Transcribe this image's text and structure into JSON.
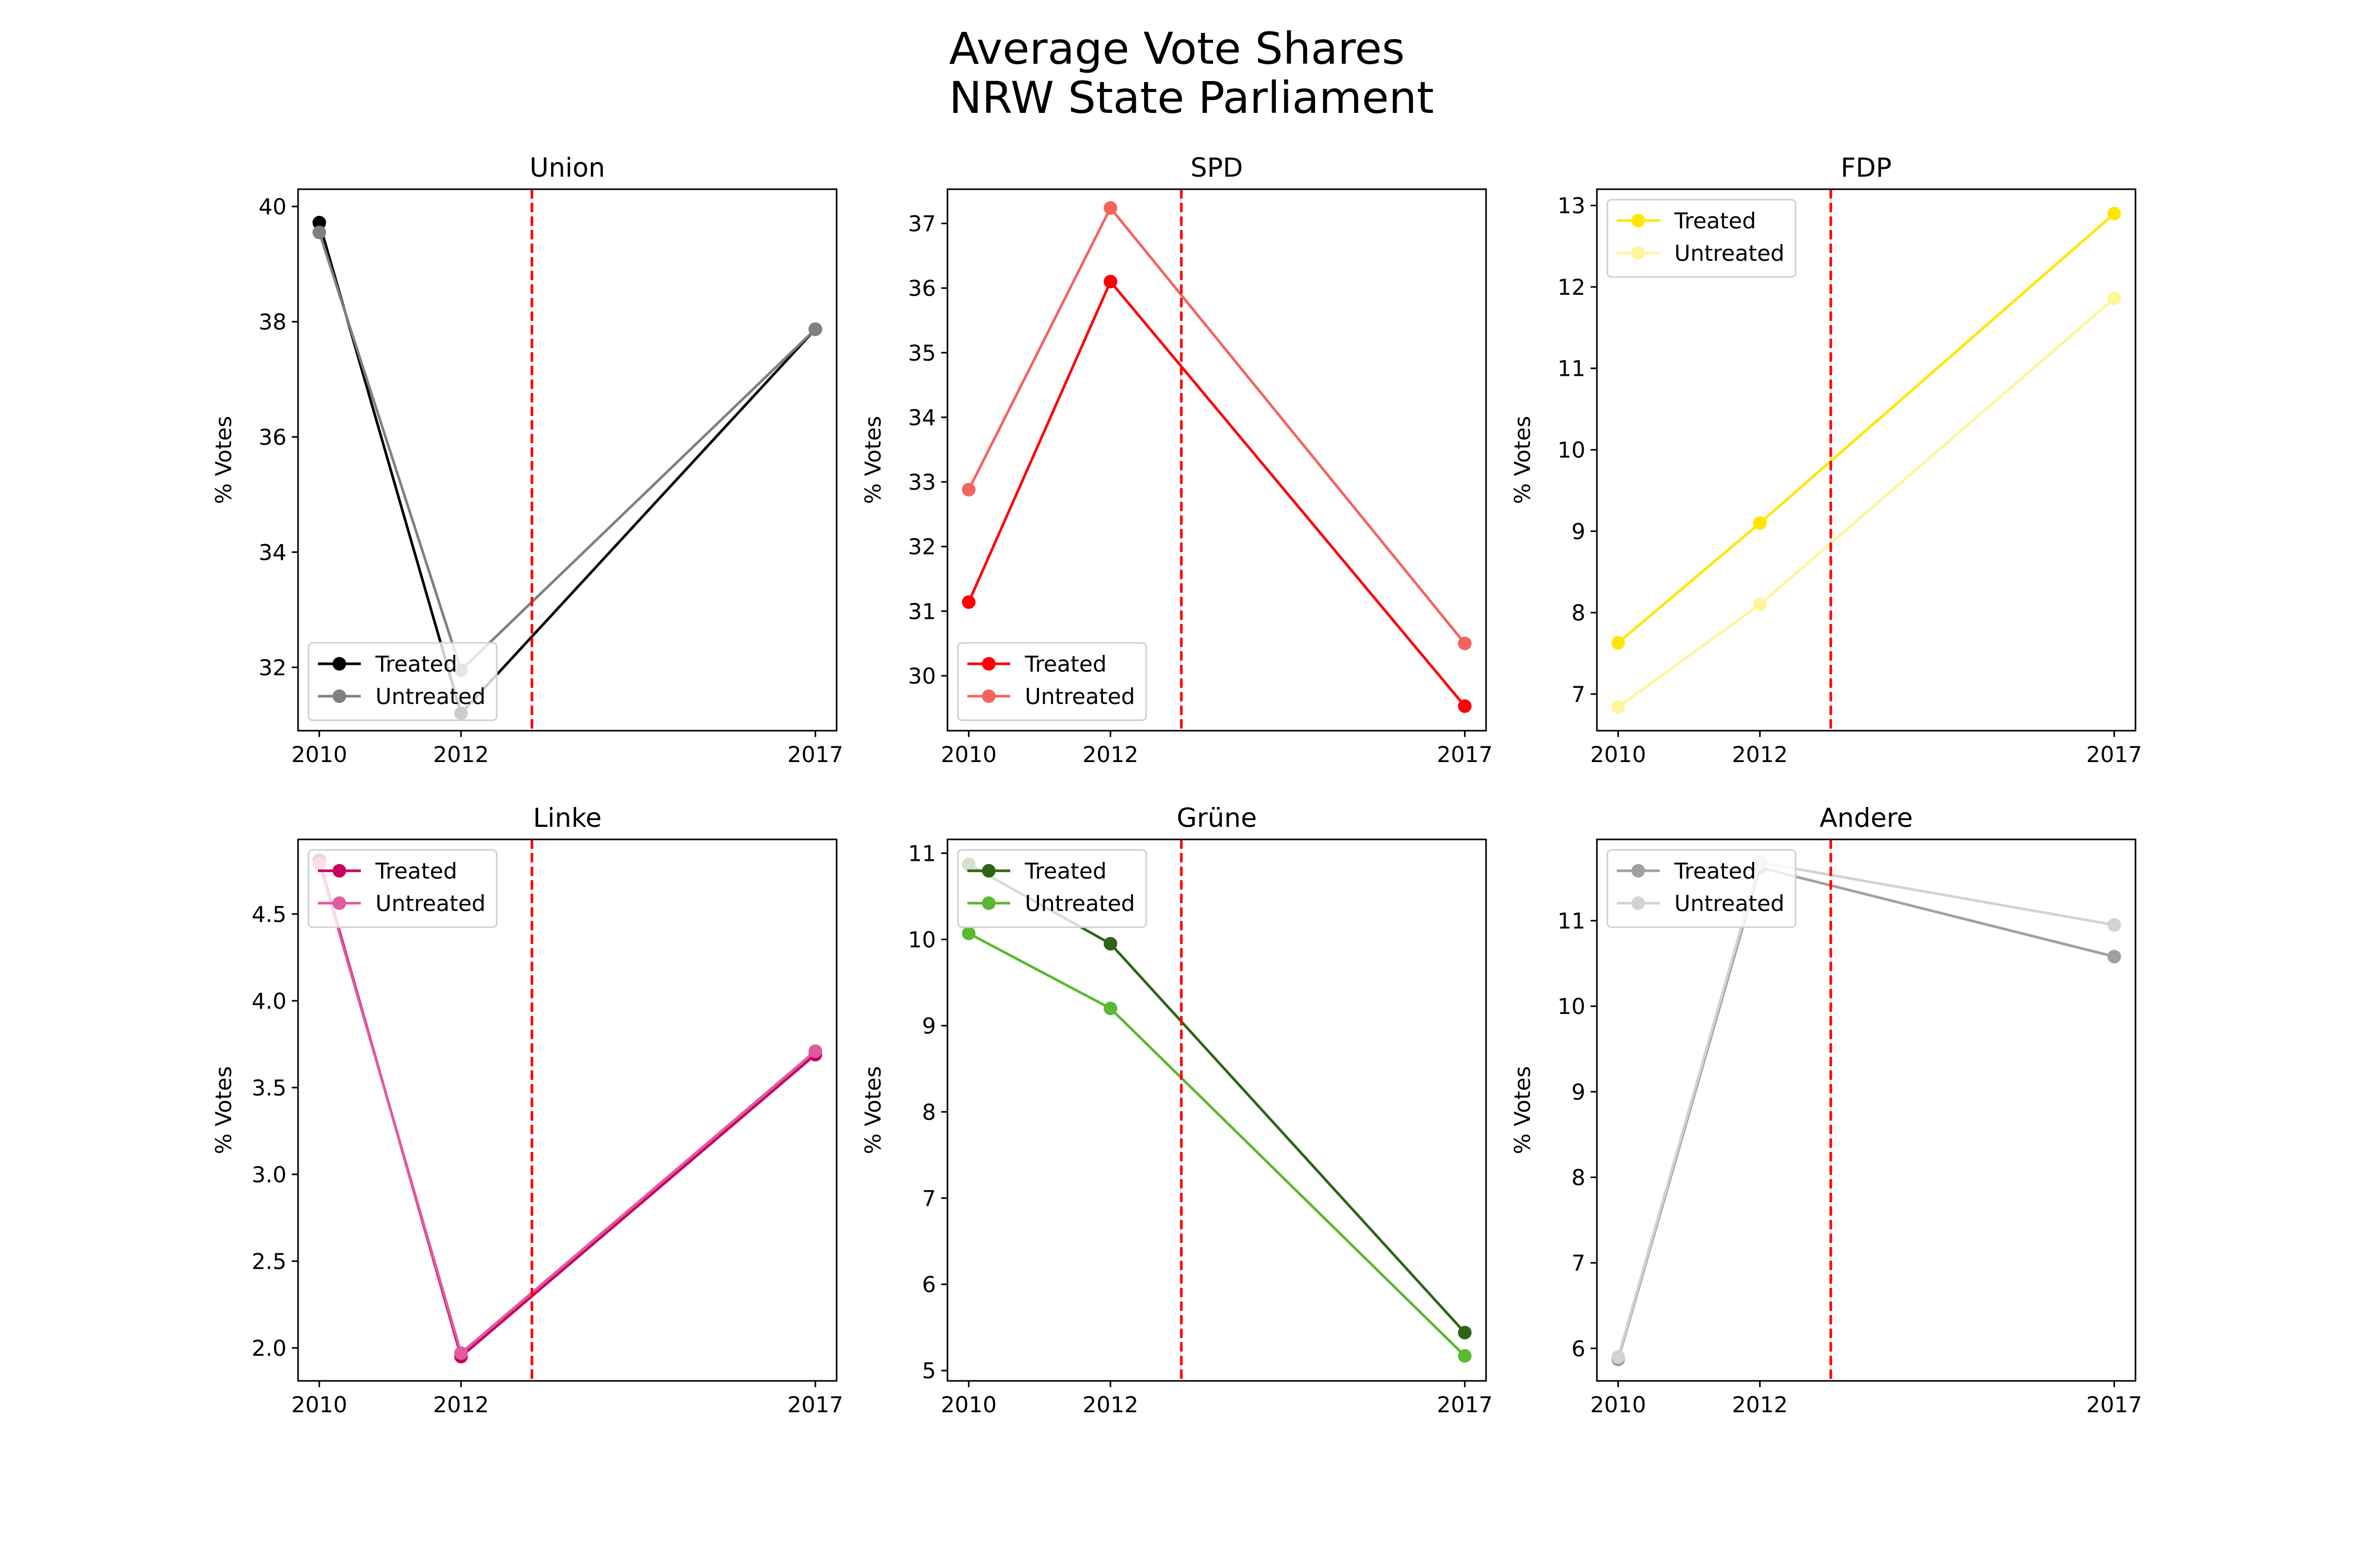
{
  "figure_title": [
    "Average Vote Shares",
    "NRW State Parliament"
  ],
  "chart_data": [
    {
      "type": "line",
      "title": "Union",
      "xlabel": "",
      "ylabel": "% Votes",
      "x": [
        2010,
        2012,
        2017
      ],
      "xticks": [
        "2010",
        "2012",
        "2017"
      ],
      "xlim": [
        2009.7,
        2017.3
      ],
      "ylim": [
        30.9,
        40.3
      ],
      "yticks": [
        32,
        34,
        36,
        38,
        40
      ],
      "yticklabels": [
        "32",
        "34",
        "36",
        "38",
        "40"
      ],
      "treatment_line_x": 2013,
      "legend_position": "lower-left",
      "grid": false,
      "series": [
        {
          "name": "Treated",
          "color": "#000000",
          "values": [
            39.72,
            31.2,
            37.87
          ]
        },
        {
          "name": "Untreated",
          "color": "#808080",
          "values": [
            39.55,
            31.95,
            37.87
          ]
        }
      ]
    },
    {
      "type": "line",
      "title": "SPD",
      "xlabel": "",
      "ylabel": "% Votes",
      "x": [
        2010,
        2012,
        2017
      ],
      "xticks": [
        "2010",
        "2012",
        "2017"
      ],
      "xlim": [
        2009.7,
        2017.3
      ],
      "ylim": [
        29.15,
        37.53
      ],
      "yticks": [
        30,
        31,
        32,
        33,
        34,
        35,
        36,
        37
      ],
      "yticklabels": [
        "30",
        "31",
        "32",
        "33",
        "34",
        "35",
        "36",
        "37"
      ],
      "treatment_line_x": 2013,
      "legend_position": "lower-left",
      "grid": false,
      "series": [
        {
          "name": "Treated",
          "color": "#ff0000",
          "values": [
            31.14,
            36.1,
            29.53
          ]
        },
        {
          "name": "Untreated",
          "color": "#f4645f",
          "values": [
            32.88,
            37.24,
            30.5
          ]
        }
      ]
    },
    {
      "type": "line",
      "title": "FDP",
      "xlabel": "",
      "ylabel": "% Votes",
      "x": [
        2010,
        2012,
        2017
      ],
      "xticks": [
        "2010",
        "2012",
        "2017"
      ],
      "xlim": [
        2009.7,
        2017.3
      ],
      "ylim": [
        6.55,
        13.2
      ],
      "yticks": [
        7,
        8,
        9,
        10,
        11,
        12,
        13
      ],
      "yticklabels": [
        "7",
        "8",
        "9",
        "10",
        "11",
        "12",
        "13"
      ],
      "treatment_line_x": 2013,
      "legend_position": "upper-left",
      "grid": false,
      "series": [
        {
          "name": "Treated",
          "color": "#ffe600",
          "values": [
            7.63,
            9.1,
            12.9
          ]
        },
        {
          "name": "Untreated",
          "color": "#fff59a",
          "values": [
            6.84,
            8.1,
            11.86
          ]
        }
      ]
    },
    {
      "type": "line",
      "title": "Linke",
      "xlabel": "",
      "ylabel": "% Votes",
      "x": [
        2010,
        2012,
        2017
      ],
      "xticks": [
        "2010",
        "2012",
        "2017"
      ],
      "xlim": [
        2009.7,
        2017.3
      ],
      "ylim": [
        1.81,
        4.93
      ],
      "yticks": [
        2.0,
        2.5,
        3.0,
        3.5,
        4.0,
        4.5
      ],
      "yticklabels": [
        "2.0",
        "2.5",
        "3.0",
        "3.5",
        "4.0",
        "4.5"
      ],
      "treatment_line_x": 2013,
      "legend_position": "upper-left",
      "grid": false,
      "series": [
        {
          "name": "Treated",
          "color": "#c8005f",
          "values": [
            4.81,
            1.95,
            3.69
          ]
        },
        {
          "name": "Untreated",
          "color": "#e05aa0",
          "values": [
            4.79,
            1.97,
            3.71
          ]
        }
      ]
    },
    {
      "type": "line",
      "title": "Grüne",
      "xlabel": "",
      "ylabel": "% Votes",
      "x": [
        2010,
        2012,
        2017
      ],
      "xticks": [
        "2010",
        "2012",
        "2017"
      ],
      "xlim": [
        2009.7,
        2017.3
      ],
      "ylim": [
        4.88,
        11.16
      ],
      "yticks": [
        5,
        6,
        7,
        8,
        9,
        10,
        11
      ],
      "yticklabels": [
        "5",
        "6",
        "7",
        "8",
        "9",
        "10",
        "11"
      ],
      "treatment_line_x": 2013,
      "legend_position": "upper-left",
      "grid": false,
      "series": [
        {
          "name": "Treated",
          "color": "#2e6318",
          "values": [
            10.87,
            9.95,
            5.44
          ]
        },
        {
          "name": "Untreated",
          "color": "#5ab832",
          "values": [
            10.07,
            9.2,
            5.17
          ]
        }
      ]
    },
    {
      "type": "line",
      "title": "Andere",
      "xlabel": "",
      "ylabel": "% Votes",
      "x": [
        2010,
        2012,
        2017
      ],
      "xticks": [
        "2010",
        "2012",
        "2017"
      ],
      "xlim": [
        2009.7,
        2017.3
      ],
      "ylim": [
        5.62,
        11.95
      ],
      "yticks": [
        6,
        7,
        8,
        9,
        10,
        11
      ],
      "yticklabels": [
        "6",
        "7",
        "8",
        "9",
        "10",
        "11"
      ],
      "treatment_line_x": 2013,
      "legend_position": "upper-left",
      "grid": false,
      "series": [
        {
          "name": "Treated",
          "color": "#a0a0a0",
          "values": [
            5.87,
            11.62,
            10.58
          ]
        },
        {
          "name": "Untreated",
          "color": "#d2d2d2",
          "values": [
            5.9,
            11.68,
            10.95
          ]
        }
      ]
    }
  ],
  "colors": {
    "treatment_line": "#ff0000",
    "axes": "#000000",
    "background": "#ffffff"
  }
}
